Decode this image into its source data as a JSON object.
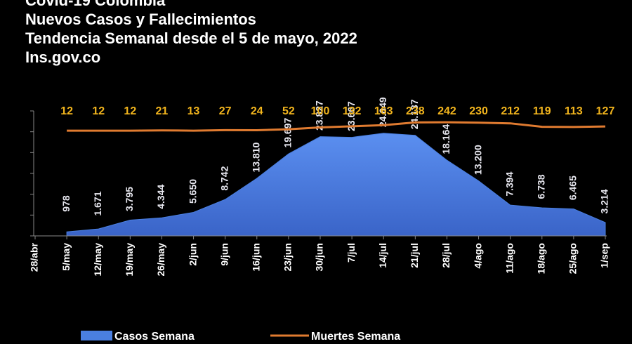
{
  "chart_data": {
    "type": "area_line",
    "title_lines": [
      "Covid-19 Colombia",
      "Nuevos Casos y Fallecimientos",
      "Tendencia Semanal desde el 5 de mayo, 2022",
      "Ins.gov.co"
    ],
    "categories": [
      "28/abr",
      "5/may",
      "12/may",
      "19/may",
      "26/may",
      "2/jun",
      "9/jun",
      "16/jun",
      "23/jun",
      "30/jun",
      "7/jul",
      "14/jul",
      "21/jul",
      "28/jul",
      "4/ago",
      "11/ago",
      "18/ago",
      "25/ago",
      "1/sep"
    ],
    "series": [
      {
        "name": "Casos Semana",
        "color": "#4a7fe0",
        "values": [
          null,
          978,
          1671,
          3795,
          4344,
          5650,
          8742,
          13810,
          19697,
          23827,
          23667,
          24649,
          24137,
          18164,
          13200,
          7394,
          6738,
          6465,
          3214
        ],
        "value_labels": [
          null,
          "978",
          "1.671",
          "3.795",
          "4.344",
          "5.650",
          "8.742",
          "13.810",
          "19.697",
          "23.827",
          "23.667",
          "24.649",
          "24.137",
          "18.164",
          "13.200",
          "7.394",
          "6.738",
          "6.465",
          "3.214"
        ]
      },
      {
        "name": "Muertes Semana",
        "color": "#e07b30",
        "axis": "y2",
        "values": [
          null,
          12,
          12,
          12,
          21,
          13,
          27,
          24,
          52,
          100,
          132,
          163,
          238,
          242,
          230,
          212,
          119,
          113,
          127
        ]
      }
    ],
    "ylim": [
      0,
      30000
    ],
    "yticks": [
      0,
      5000,
      10000,
      15000,
      20000,
      25000,
      30000
    ],
    "y2lim": [
      -2850,
      550
    ]
  }
}
